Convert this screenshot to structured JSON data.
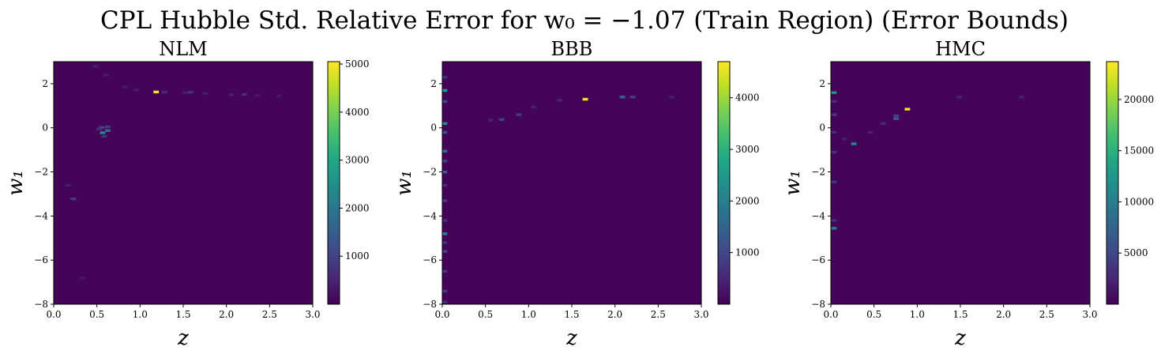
{
  "figure": {
    "title": "CPL Hubble Std. Relative Error for w₀ = −1.07 (Train Region) (Error Bounds)"
  },
  "chart_data": [
    {
      "type": "heatmap",
      "title": "NLM",
      "xlabel": "z",
      "ylabel": "w₁",
      "xlim": [
        0.0,
        3.0
      ],
      "ylim": [
        -8,
        3
      ],
      "xticks": [
        "0.0",
        "0.5",
        "1.0",
        "1.5",
        "2.0",
        "2.5",
        "3.0"
      ],
      "yticks": [
        "−8",
        "−6",
        "−4",
        "−2",
        "0",
        "2"
      ],
      "colorbar": {
        "min": 0,
        "max": 5050,
        "ticks": [
          "1000",
          "2000",
          "3000",
          "4000",
          "5000"
        ]
      },
      "background_value": 50,
      "cells": [
        {
          "z": 1.18,
          "w1": 1.63,
          "v": 5000
        },
        {
          "z": 0.56,
          "w1": -0.22,
          "v": 2400
        },
        {
          "z": 0.62,
          "w1": -0.12,
          "v": 1700
        },
        {
          "z": 0.55,
          "w1": 0.02,
          "v": 1100
        },
        {
          "z": 0.62,
          "w1": 0.05,
          "v": 900
        },
        {
          "z": 0.58,
          "w1": -0.38,
          "v": 700
        },
        {
          "z": 0.52,
          "w1": -0.05,
          "v": 650
        },
        {
          "z": 0.22,
          "w1": -3.22,
          "v": 900
        },
        {
          "z": 1.28,
          "w1": 1.62,
          "v": 600
        },
        {
          "z": 1.58,
          "w1": 1.62,
          "v": 650
        },
        {
          "z": 1.52,
          "w1": 1.6,
          "v": 450
        },
        {
          "z": 1.75,
          "w1": 1.55,
          "v": 420
        },
        {
          "z": 2.2,
          "w1": 1.52,
          "v": 600
        },
        {
          "z": 2.05,
          "w1": 1.5,
          "v": 380
        },
        {
          "z": 2.35,
          "w1": 1.48,
          "v": 350
        },
        {
          "z": 2.6,
          "w1": 1.45,
          "v": 330
        },
        {
          "z": 0.95,
          "w1": 1.72,
          "v": 380
        },
        {
          "z": 0.82,
          "w1": 1.85,
          "v": 350
        },
        {
          "z": 0.6,
          "w1": 2.4,
          "v": 380
        },
        {
          "z": 0.48,
          "w1": 2.8,
          "v": 400
        },
        {
          "z": 0.16,
          "w1": -2.6,
          "v": 400
        },
        {
          "z": 0.33,
          "w1": -6.8,
          "v": 300
        }
      ]
    },
    {
      "type": "heatmap",
      "title": "BBB",
      "xlabel": "z",
      "ylabel": "w₁",
      "xlim": [
        0.0,
        3.0
      ],
      "ylim": [
        -8,
        3
      ],
      "xticks": [
        "0.0",
        "0.5",
        "1.0",
        "1.5",
        "2.0",
        "2.5",
        "3.0"
      ],
      "yticks": [
        "−8",
        "−6",
        "−4",
        "−2",
        "0",
        "2"
      ],
      "colorbar": {
        "min": 0,
        "max": 4700,
        "ticks": [
          "1000",
          "2000",
          "3000",
          "4000"
        ]
      },
      "background_value": 50,
      "cells": [
        {
          "z": 1.65,
          "w1": 1.3,
          "v": 4600
        },
        {
          "z": 2.08,
          "w1": 1.4,
          "v": 1500
        },
        {
          "z": 2.2,
          "w1": 1.4,
          "v": 900
        },
        {
          "z": 0.68,
          "w1": 0.38,
          "v": 900
        },
        {
          "z": 0.88,
          "w1": 0.6,
          "v": 800
        },
        {
          "z": 1.05,
          "w1": 0.95,
          "v": 400
        },
        {
          "z": 1.35,
          "w1": 1.25,
          "v": 450
        },
        {
          "z": 2.65,
          "w1": 1.4,
          "v": 400
        },
        {
          "z": 0.55,
          "w1": 0.35,
          "v": 380
        },
        {
          "z": 0.02,
          "w1": 1.7,
          "v": 2600
        },
        {
          "z": 0.02,
          "w1": 0.2,
          "v": 2300
        },
        {
          "z": 0.02,
          "w1": -4.8,
          "v": 2200
        },
        {
          "z": 0.02,
          "w1": -1.05,
          "v": 1800
        },
        {
          "z": 0.02,
          "w1": -2.0,
          "v": 1400
        },
        {
          "z": 0.02,
          "w1": -0.2,
          "v": 1200
        },
        {
          "z": 0.02,
          "w1": 1.2,
          "v": 1000
        },
        {
          "z": 0.02,
          "w1": -1.5,
          "v": 900
        },
        {
          "z": 0.02,
          "w1": -3.3,
          "v": 800
        },
        {
          "z": 0.02,
          "w1": -5.6,
          "v": 900
        },
        {
          "z": 0.02,
          "w1": -6.5,
          "v": 700
        },
        {
          "z": 0.02,
          "w1": -7.4,
          "v": 800
        },
        {
          "z": 0.02,
          "w1": 2.3,
          "v": 600
        },
        {
          "z": 0.02,
          "w1": -2.6,
          "v": 600
        },
        {
          "z": 0.02,
          "w1": -4.2,
          "v": 600
        },
        {
          "z": 0.02,
          "w1": -5.2,
          "v": 700
        },
        {
          "z": 0.02,
          "w1": -7.9,
          "v": 600
        }
      ]
    },
    {
      "type": "heatmap",
      "title": "HMC",
      "xlabel": "z",
      "ylabel": "w₁",
      "xlim": [
        0.0,
        3.0
      ],
      "ylim": [
        -8,
        3
      ],
      "xticks": [
        "0.0",
        "0.5",
        "1.0",
        "1.5",
        "2.0",
        "2.5",
        "3.0"
      ],
      "yticks": [
        "−8",
        "−6",
        "−4",
        "−2",
        "0",
        "2"
      ],
      "colorbar": {
        "min": 0,
        "max": 23700,
        "ticks": [
          "5000",
          "10000",
          "15000",
          "20000"
        ]
      },
      "background_value": 200,
      "cells": [
        {
          "z": 0.88,
          "w1": 0.85,
          "v": 23000
        },
        {
          "z": 0.26,
          "w1": -0.72,
          "v": 11000
        },
        {
          "z": 0.03,
          "w1": -4.55,
          "v": 10000
        },
        {
          "z": 0.03,
          "w1": 1.6,
          "v": 11500
        },
        {
          "z": 0.75,
          "w1": 0.42,
          "v": 7000
        },
        {
          "z": 0.75,
          "w1": 0.55,
          "v": 4500
        },
        {
          "z": 0.03,
          "w1": 0.6,
          "v": 3500
        },
        {
          "z": 0.03,
          "w1": -1.1,
          "v": 3200
        },
        {
          "z": 0.03,
          "w1": -2.45,
          "v": 3500
        },
        {
          "z": 0.03,
          "w1": 1.2,
          "v": 3000
        },
        {
          "z": 0.03,
          "w1": -0.2,
          "v": 2800
        },
        {
          "z": 0.03,
          "w1": -4.2,
          "v": 3200
        },
        {
          "z": 0.6,
          "w1": 0.2,
          "v": 2500
        },
        {
          "z": 0.45,
          "w1": -0.2,
          "v": 2200
        },
        {
          "z": 1.48,
          "w1": 1.4,
          "v": 2200
        },
        {
          "z": 2.2,
          "w1": 1.4,
          "v": 2000
        },
        {
          "z": 0.15,
          "w1": -0.5,
          "v": 1800
        }
      ]
    }
  ]
}
